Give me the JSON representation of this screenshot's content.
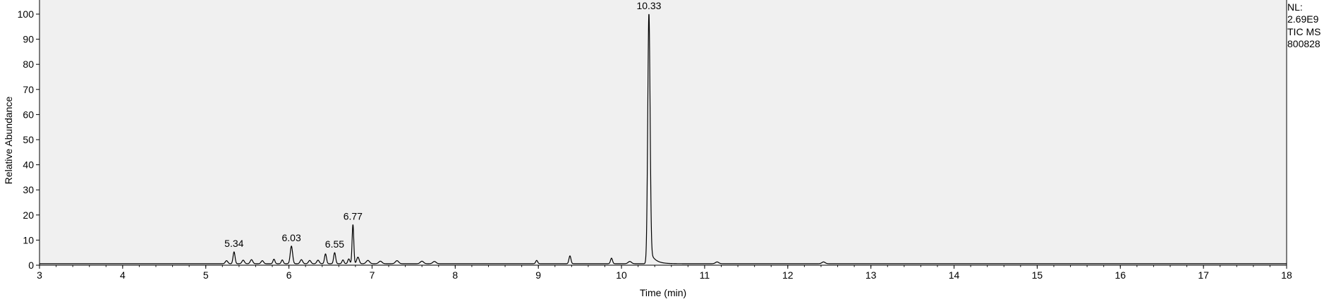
{
  "chart_data": {
    "type": "line",
    "title": "",
    "xlabel": "Time (min)",
    "ylabel": "Relative Abundance",
    "xlim": [
      3,
      18
    ],
    "ylim": [
      0,
      100
    ],
    "x_ticks": [
      3,
      4,
      5,
      6,
      7,
      8,
      9,
      10,
      11,
      12,
      13,
      14,
      15,
      16,
      17,
      18
    ],
    "y_ticks": [
      0,
      10,
      20,
      30,
      40,
      50,
      60,
      70,
      80,
      90,
      100
    ],
    "grid": false,
    "baseline": 0.6,
    "peaks": [
      {
        "rt": 5.25,
        "height": 1.2,
        "width": 0.015
      },
      {
        "rt": 5.34,
        "height": 4.7,
        "width": 0.012,
        "label": "5.34"
      },
      {
        "rt": 5.45,
        "height": 1.4,
        "width": 0.015
      },
      {
        "rt": 5.55,
        "height": 1.6,
        "width": 0.015
      },
      {
        "rt": 5.68,
        "height": 1.2,
        "width": 0.015
      },
      {
        "rt": 5.82,
        "height": 1.8,
        "width": 0.012
      },
      {
        "rt": 5.92,
        "height": 1.5,
        "width": 0.012
      },
      {
        "rt": 6.03,
        "height": 7.0,
        "width": 0.014,
        "label": "6.03"
      },
      {
        "rt": 6.15,
        "height": 1.6,
        "width": 0.015
      },
      {
        "rt": 6.25,
        "height": 1.3,
        "width": 0.015
      },
      {
        "rt": 6.35,
        "height": 1.4,
        "width": 0.015
      },
      {
        "rt": 6.44,
        "height": 3.9,
        "width": 0.012
      },
      {
        "rt": 6.55,
        "height": 4.4,
        "width": 0.012,
        "label": "6.55"
      },
      {
        "rt": 6.65,
        "height": 1.5,
        "width": 0.012
      },
      {
        "rt": 6.72,
        "height": 1.9,
        "width": 0.012
      },
      {
        "rt": 6.77,
        "height": 15.6,
        "width": 0.01,
        "label": "6.77"
      },
      {
        "rt": 6.83,
        "height": 2.6,
        "width": 0.015
      },
      {
        "rt": 6.95,
        "height": 1.3,
        "width": 0.02
      },
      {
        "rt": 7.1,
        "height": 1.0,
        "width": 0.02
      },
      {
        "rt": 7.3,
        "height": 1.2,
        "width": 0.02
      },
      {
        "rt": 7.6,
        "height": 1.0,
        "width": 0.02
      },
      {
        "rt": 7.75,
        "height": 0.9,
        "width": 0.02
      },
      {
        "rt": 8.98,
        "height": 1.3,
        "width": 0.012
      },
      {
        "rt": 9.38,
        "height": 3.1,
        "width": 0.012
      },
      {
        "rt": 9.88,
        "height": 2.2,
        "width": 0.012
      },
      {
        "rt": 10.1,
        "height": 0.9,
        "width": 0.02
      },
      {
        "rt": 10.33,
        "height": 100,
        "width": 0.014,
        "tail": 0.06,
        "label": "10.33"
      },
      {
        "rt": 11.15,
        "height": 0.7,
        "width": 0.02
      },
      {
        "rt": 12.43,
        "height": 0.7,
        "width": 0.02
      }
    ],
    "info_box": [
      "NL:",
      "2.69E9",
      "TIC  MS",
      "800828"
    ],
    "line_color": "#000000",
    "plot_background": "#f0f0f0"
  }
}
